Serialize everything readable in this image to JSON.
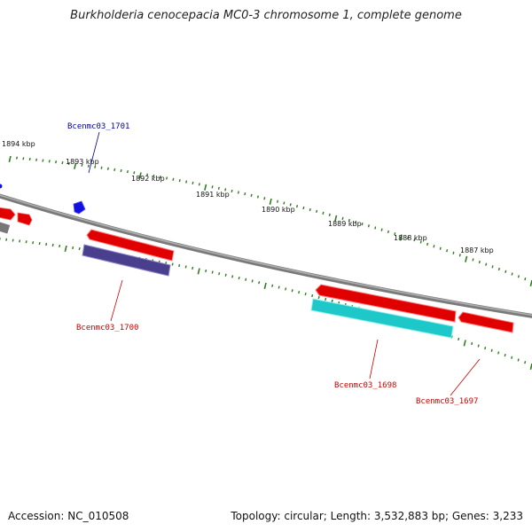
{
  "title": "Burkholderia cenocepacia MC0-3 chromosome 1, complete genome",
  "footer": {
    "accession": "Accession: NC_010508",
    "summary": "Topology: circular; Length: 3,532,883 bp; Genes: 3,233"
  },
  "colors": {
    "backbone": "#8a8a8a",
    "tick": "#2e7d1e",
    "gene_forward": "#e00000",
    "gene_reverse_blue": "#4a3f8c",
    "gene_reverse_cyan": "#1ec8c8",
    "gene_small_blue": "#1010e0",
    "label_red": "#cc0000",
    "label_blue": "#000099"
  },
  "tick_labels": [
    "1894 kbp",
    "1893 kbp",
    "1892 kbp",
    "1891 kbp",
    "1890 kbp",
    "1889 kbp",
    "1888 kbp",
    "1887 kbp"
  ],
  "gene_labels": {
    "g1701": "Bcenmc03_1701",
    "g1700": "Bcenmc03_1700",
    "g1698": "Bcenmc03_1698",
    "g1697": "Bcenmc03_1697"
  }
}
